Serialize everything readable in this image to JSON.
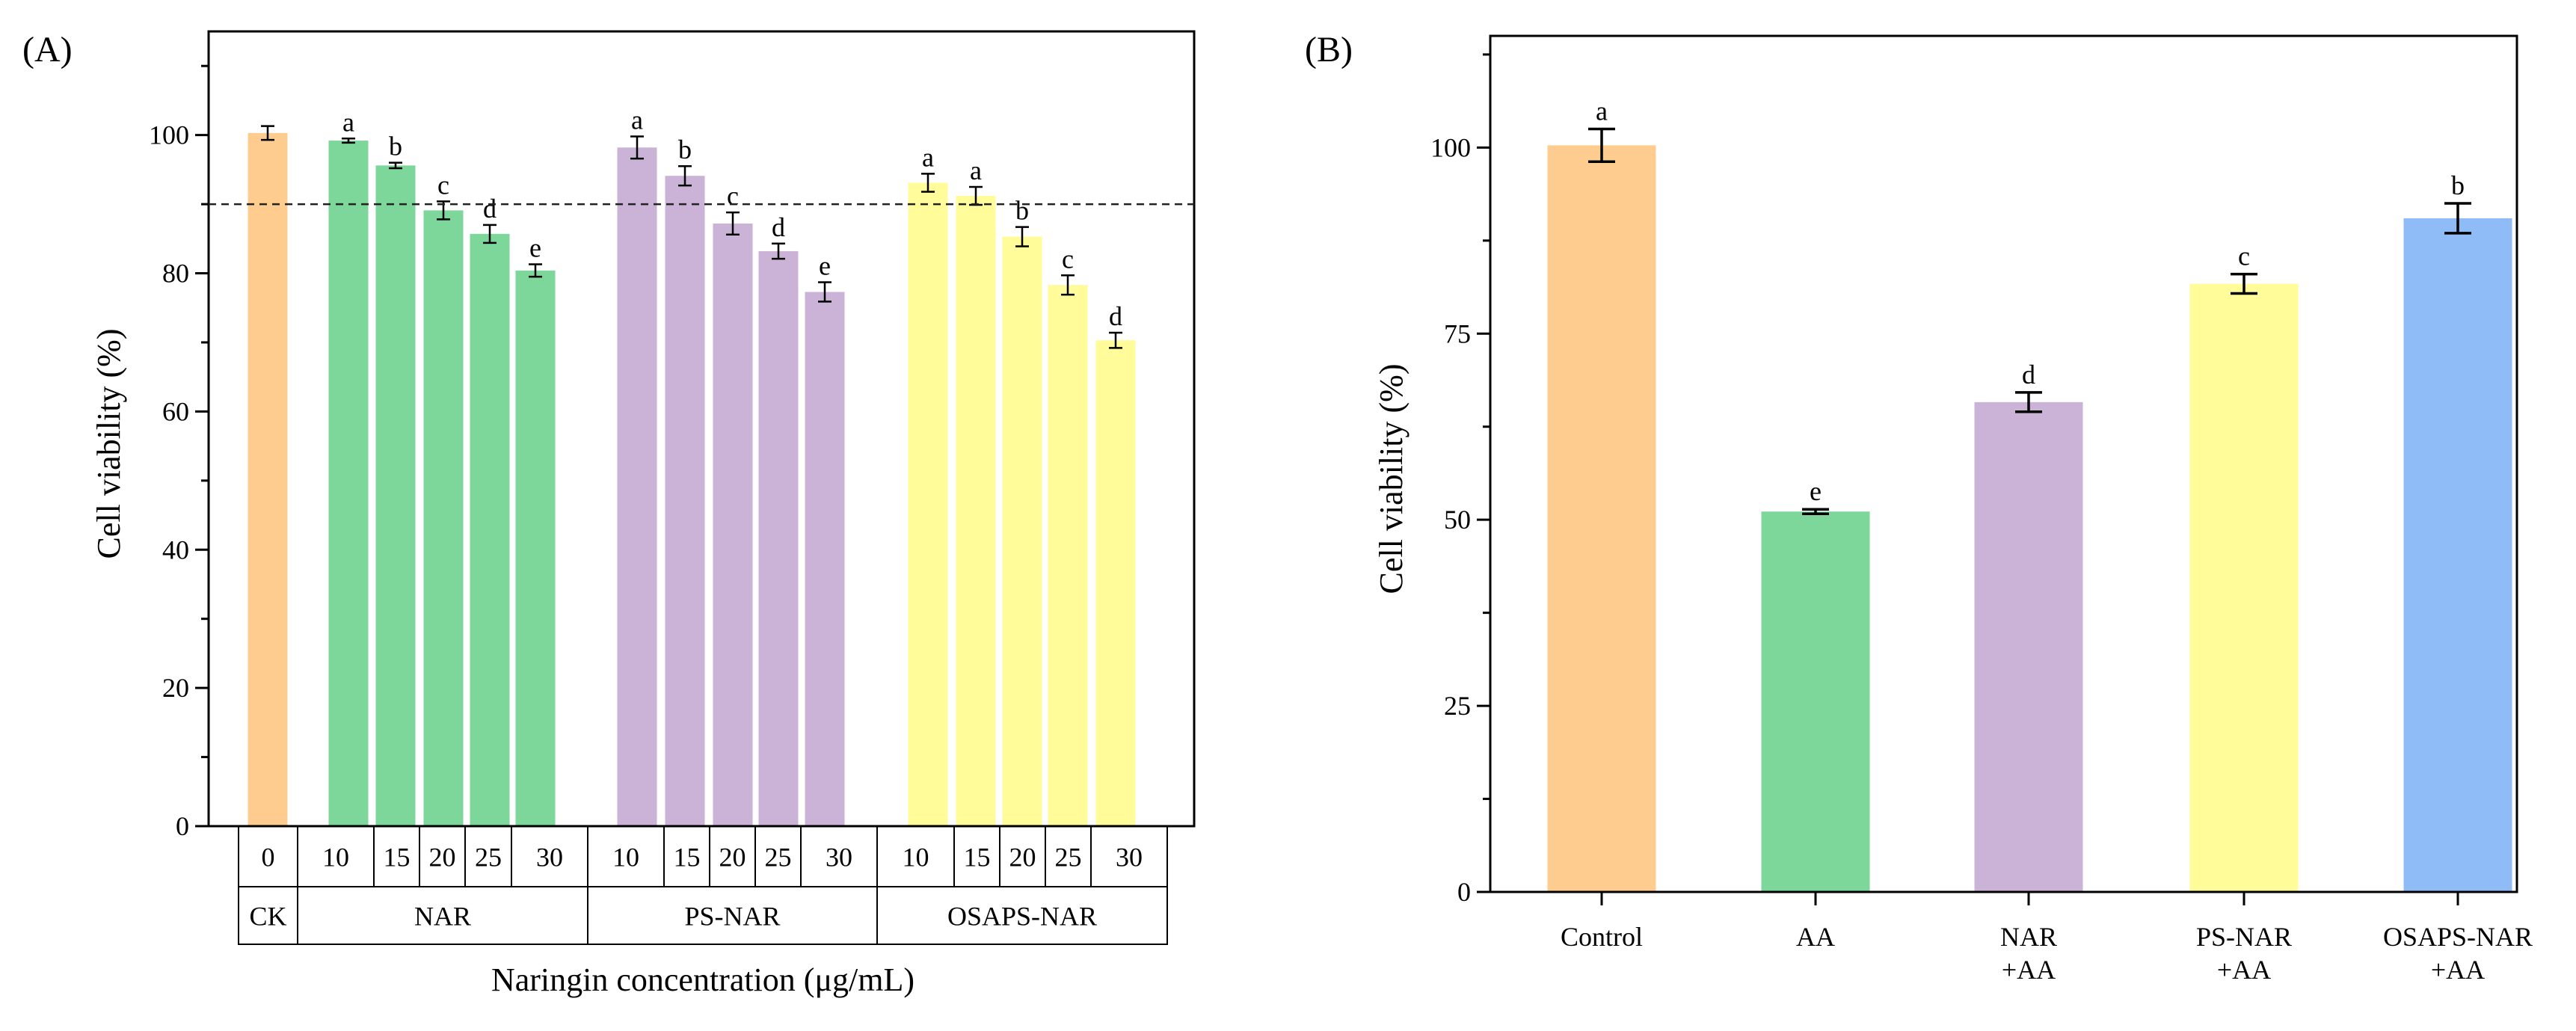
{
  "chart_data": [
    {
      "type": "bar",
      "panel_label": "(A)",
      "ylabel": "Cell viability (%)",
      "xlabel": "Naringin concentration (μg/mL)",
      "ylim": [
        0,
        115
      ],
      "yticks": [
        0,
        20,
        40,
        60,
        80,
        100
      ],
      "reference_line": 90,
      "groups": [
        {
          "name": "CK",
          "color": "#FFCC90",
          "categories": [
            "0"
          ],
          "values": [
            100.3
          ],
          "errors": [
            1.0
          ],
          "letters": [
            ""
          ]
        },
        {
          "name": "NAR",
          "color": "#7DD69A",
          "categories": [
            "10",
            "15",
            "20",
            "25",
            "30"
          ],
          "values": [
            99.2,
            95.6,
            89.1,
            85.7,
            80.4
          ],
          "errors": [
            0.3,
            0.4,
            1.3,
            1.3,
            0.9
          ],
          "letters": [
            "a",
            "b",
            "c",
            "d",
            "e"
          ]
        },
        {
          "name": "PS-NAR",
          "color": "#CBB3D8",
          "categories": [
            "10",
            "15",
            "20",
            "25",
            "30"
          ],
          "values": [
            98.2,
            94.1,
            87.2,
            83.2,
            77.3
          ],
          "errors": [
            1.6,
            1.4,
            1.6,
            1.1,
            1.4
          ],
          "letters": [
            "a",
            "b",
            "c",
            "d",
            "e"
          ]
        },
        {
          "name": "OSAPS-NAR",
          "color": "#FFFC99",
          "categories": [
            "10",
            "15",
            "20",
            "25",
            "30"
          ],
          "values": [
            93.1,
            91.2,
            85.3,
            78.3,
            70.3
          ],
          "errors": [
            1.3,
            1.3,
            1.4,
            1.4,
            1.1
          ],
          "letters": [
            "a",
            "a",
            "b",
            "c",
            "d"
          ]
        }
      ]
    },
    {
      "type": "bar",
      "panel_label": "(B)",
      "ylabel": "Cell viability (%)",
      "ylim": [
        0,
        115
      ],
      "yticks": [
        0,
        25,
        50,
        75,
        100
      ],
      "categories": [
        [
          "Control"
        ],
        [
          "AA"
        ],
        [
          "NAR",
          "+AA"
        ],
        [
          "PS-NAR",
          "+AA"
        ],
        [
          "OSAPS-NAR",
          "+AA"
        ]
      ],
      "values": [
        100.3,
        51.1,
        65.8,
        81.7,
        90.5
      ],
      "errors": [
        2.2,
        0.3,
        1.3,
        1.3,
        2.0
      ],
      "letters": [
        "a",
        "e",
        "d",
        "c",
        "b"
      ],
      "colors": [
        "#FFCC90",
        "#7DD69A",
        "#CBB3D8",
        "#FFFC99",
        "#8FBCF7"
      ]
    }
  ]
}
